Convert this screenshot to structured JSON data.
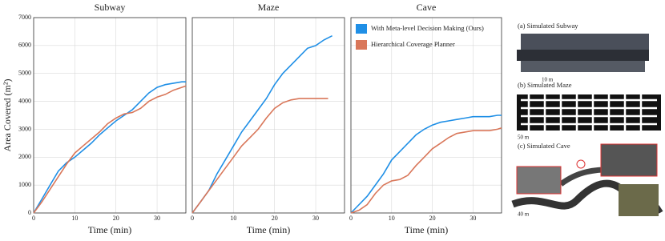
{
  "chart_data": [
    {
      "type": "line",
      "title": "Subway",
      "ylabel": "Area Covered (m²)",
      "xlabel": "Time (min)",
      "xlim": [
        0,
        37
      ],
      "xticks": [
        0,
        10,
        20,
        30
      ],
      "ylim": [
        0,
        7000
      ],
      "yticks": [
        0,
        1000,
        2000,
        3000,
        4000,
        5000,
        6000,
        7000
      ],
      "grid": true,
      "series": [
        {
          "name": "With Meta-level Decision Making (Ours)",
          "color": "#1f8fe6",
          "x": [
            0,
            2,
            4,
            6,
            8,
            10,
            12,
            14,
            16,
            18,
            20,
            22,
            24,
            26,
            28,
            30,
            32,
            34,
            36,
            37
          ],
          "values": [
            0,
            500,
            1000,
            1500,
            1800,
            2000,
            2250,
            2500,
            2800,
            3050,
            3300,
            3500,
            3700,
            4000,
            4300,
            4500,
            4600,
            4650,
            4700,
            4700
          ]
        },
        {
          "name": "Hierarchical Coverage Planner",
          "color": "#d9775a",
          "x": [
            0,
            2,
            4,
            6,
            8,
            10,
            12,
            14,
            16,
            18,
            20,
            22,
            24,
            26,
            28,
            30,
            32,
            34,
            36,
            37
          ],
          "values": [
            0,
            400,
            850,
            1300,
            1750,
            2150,
            2400,
            2650,
            2900,
            3200,
            3400,
            3550,
            3600,
            3750,
            4000,
            4150,
            4250,
            4400,
            4500,
            4550
          ]
        }
      ]
    },
    {
      "type": "line",
      "title": "Maze",
      "xlabel": "Time (min)",
      "xlim": [
        0,
        37
      ],
      "xticks": [
        0,
        10,
        20,
        30
      ],
      "ylim": [
        0,
        7000
      ],
      "yticks": [
        0,
        1000,
        2000,
        3000,
        4000,
        5000,
        6000,
        7000
      ],
      "grid": true,
      "series": [
        {
          "name": "With Meta-level Decision Making (Ours)",
          "color": "#1f8fe6",
          "x": [
            0,
            2,
            4,
            6,
            8,
            10,
            12,
            14,
            16,
            18,
            20,
            22,
            24,
            26,
            28,
            30,
            32,
            34
          ],
          "values": [
            0,
            400,
            800,
            1400,
            1900,
            2400,
            2900,
            3300,
            3700,
            4100,
            4600,
            5000,
            5300,
            5600,
            5900,
            6000,
            6200,
            6350
          ]
        },
        {
          "name": "Hierarchical Coverage Planner",
          "color": "#d9775a",
          "x": [
            0,
            2,
            4,
            6,
            8,
            10,
            12,
            14,
            16,
            18,
            20,
            22,
            24,
            26,
            28,
            30,
            32,
            33
          ],
          "values": [
            0,
            400,
            800,
            1200,
            1600,
            2000,
            2400,
            2700,
            3000,
            3400,
            3750,
            3950,
            4050,
            4100,
            4100,
            4100,
            4100,
            4100
          ]
        }
      ]
    },
    {
      "type": "line",
      "title": "Cave",
      "xlabel": "Time (min)",
      "xlim": [
        0,
        37
      ],
      "xticks": [
        0,
        10,
        20,
        30
      ],
      "ylim": [
        0,
        7000
      ],
      "yticks": [
        0,
        1000,
        2000,
        3000,
        4000,
        5000,
        6000,
        7000
      ],
      "grid": true,
      "legend": "top-right",
      "series": [
        {
          "name": "With Meta-level Decision Making (Ours)",
          "color": "#1f8fe6",
          "x": [
            0,
            2,
            4,
            6,
            8,
            10,
            12,
            14,
            16,
            18,
            20,
            22,
            24,
            26,
            28,
            30,
            32,
            34,
            36,
            37
          ],
          "values": [
            0,
            300,
            600,
            1000,
            1400,
            1900,
            2200,
            2500,
            2800,
            3000,
            3150,
            3250,
            3300,
            3350,
            3400,
            3450,
            3450,
            3450,
            3500,
            3500
          ]
        },
        {
          "name": "Hierarchical Coverage Planner",
          "color": "#d9775a",
          "x": [
            0,
            2,
            4,
            6,
            8,
            10,
            12,
            14,
            16,
            18,
            20,
            22,
            24,
            26,
            28,
            30,
            32,
            34,
            36,
            37
          ],
          "values": [
            0,
            100,
            300,
            700,
            1000,
            1150,
            1200,
            1350,
            1700,
            2000,
            2300,
            2500,
            2700,
            2850,
            2900,
            2950,
            2950,
            2950,
            3000,
            3050
          ]
        }
      ]
    }
  ],
  "images": [
    {
      "caption": "(a) Simulated Subway",
      "scale": "10 m"
    },
    {
      "caption": "(b) Simulated Maze",
      "scale": "50 m"
    },
    {
      "caption": "(c) Simulated Cave",
      "scale": "40 m"
    }
  ]
}
